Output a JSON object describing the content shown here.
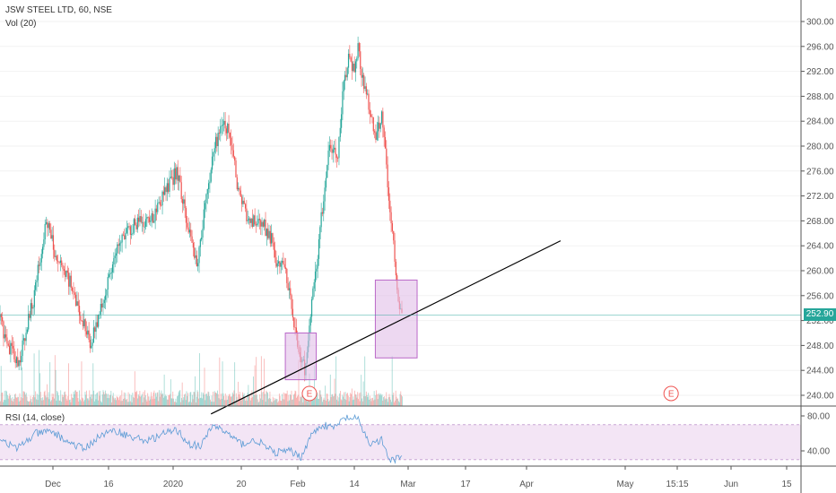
{
  "chart_data": {
    "type": "candlestick",
    "symbol_title": "JSW STEEL LTD, 60, NSE",
    "volume_title": "Vol (20)",
    "rsi_title": "RSI (14, close)",
    "last_price": "252.90",
    "colors": {
      "up": "#26a69a",
      "down": "#ef5350",
      "trendline": "#000000",
      "box_fill": "#e1bee7",
      "box_stroke": "#ba68c8",
      "rsi_band": "#f3e5f5",
      "rsi_line": "#5b9bd5",
      "price_line": "#26a69a",
      "earnings": "#ef5350"
    },
    "price_axis": {
      "ylim": [
        237,
        303
      ],
      "ticks": [
        "240.00",
        "244.00",
        "248.00",
        "252.00",
        "256.00",
        "260.00",
        "264.00",
        "268.00",
        "272.00",
        "276.00",
        "280.00",
        "284.00",
        "288.00",
        "292.00",
        "296.00",
        "300.00"
      ]
    },
    "rsi_axis": {
      "ylim": [
        20,
        90
      ],
      "ticks": [
        "40.00",
        "80.00"
      ],
      "band": [
        30,
        70
      ]
    },
    "x_axis": {
      "labels": [
        "Dec",
        "16",
        "2020",
        "20",
        "Feb",
        "14",
        "Mar",
        "17",
        "Apr",
        "May",
        "15:15",
        "Jun",
        "15"
      ]
    },
    "price_anchors": [
      {
        "t": 0.0,
        "p": 252
      },
      {
        "t": 0.02,
        "p": 248
      },
      {
        "t": 0.045,
        "p": 245
      },
      {
        "t": 0.085,
        "p": 256
      },
      {
        "t": 0.115,
        "p": 268
      },
      {
        "t": 0.145,
        "p": 261
      },
      {
        "t": 0.175,
        "p": 258
      },
      {
        "t": 0.195,
        "p": 254
      },
      {
        "t": 0.225,
        "p": 248
      },
      {
        "t": 0.255,
        "p": 255
      },
      {
        "t": 0.285,
        "p": 262
      },
      {
        "t": 0.31,
        "p": 266
      },
      {
        "t": 0.345,
        "p": 268
      },
      {
        "t": 0.375,
        "p": 268
      },
      {
        "t": 0.405,
        "p": 272
      },
      {
        "t": 0.44,
        "p": 276
      },
      {
        "t": 0.465,
        "p": 268
      },
      {
        "t": 0.49,
        "p": 261
      },
      {
        "t": 0.51,
        "p": 270
      },
      {
        "t": 0.53,
        "p": 279
      },
      {
        "t": 0.55,
        "p": 283
      },
      {
        "t": 0.57,
        "p": 283
      },
      {
        "t": 0.595,
        "p": 272
      },
      {
        "t": 0.62,
        "p": 268
      },
      {
        "t": 0.65,
        "p": 268
      },
      {
        "t": 0.675,
        "p": 265
      },
      {
        "t": 0.69,
        "p": 260
      },
      {
        "t": 0.705,
        "p": 262
      },
      {
        "t": 0.72,
        "p": 256
      },
      {
        "t": 0.74,
        "p": 248
      },
      {
        "t": 0.76,
        "p": 244
      },
      {
        "t": 0.775,
        "p": 254
      },
      {
        "t": 0.79,
        "p": 262
      },
      {
        "t": 0.805,
        "p": 272
      },
      {
        "t": 0.82,
        "p": 280
      },
      {
        "t": 0.84,
        "p": 278
      },
      {
        "t": 0.855,
        "p": 290
      },
      {
        "t": 0.87,
        "p": 295
      },
      {
        "t": 0.88,
        "p": 292
      },
      {
        "t": 0.89,
        "p": 296
      },
      {
        "t": 0.905,
        "p": 290
      },
      {
        "t": 0.92,
        "p": 286
      },
      {
        "t": 0.935,
        "p": 281
      },
      {
        "t": 0.95,
        "p": 285
      },
      {
        "t": 0.96,
        "p": 278
      },
      {
        "t": 0.968,
        "p": 270
      },
      {
        "t": 0.978,
        "p": 265
      },
      {
        "t": 0.986,
        "p": 258
      },
      {
        "t": 0.994,
        "p": 255
      },
      {
        "t": 1.0,
        "p": 252.9
      }
    ],
    "rsi_anchors": [
      {
        "t": 0.0,
        "v": 55
      },
      {
        "t": 0.04,
        "v": 42
      },
      {
        "t": 0.09,
        "v": 60
      },
      {
        "t": 0.13,
        "v": 62
      },
      {
        "t": 0.17,
        "v": 50
      },
      {
        "t": 0.21,
        "v": 42
      },
      {
        "t": 0.25,
        "v": 58
      },
      {
        "t": 0.29,
        "v": 63
      },
      {
        "t": 0.33,
        "v": 55
      },
      {
        "t": 0.37,
        "v": 52
      },
      {
        "t": 0.41,
        "v": 60
      },
      {
        "t": 0.44,
        "v": 64
      },
      {
        "t": 0.47,
        "v": 48
      },
      {
        "t": 0.5,
        "v": 45
      },
      {
        "t": 0.53,
        "v": 70
      },
      {
        "t": 0.56,
        "v": 62
      },
      {
        "t": 0.6,
        "v": 48
      },
      {
        "t": 0.64,
        "v": 52
      },
      {
        "t": 0.68,
        "v": 38
      },
      {
        "t": 0.72,
        "v": 40
      },
      {
        "t": 0.75,
        "v": 33
      },
      {
        "t": 0.77,
        "v": 55
      },
      {
        "t": 0.8,
        "v": 70
      },
      {
        "t": 0.83,
        "v": 66
      },
      {
        "t": 0.86,
        "v": 78
      },
      {
        "t": 0.89,
        "v": 76
      },
      {
        "t": 0.92,
        "v": 48
      },
      {
        "t": 0.95,
        "v": 52
      },
      {
        "t": 0.97,
        "v": 28
      },
      {
        "t": 1.0,
        "v": 33
      }
    ],
    "trendline": {
      "from": {
        "t": 0.525,
        "p": 237
      },
      "to": {
        "t": 1.395,
        "p": 264.8
      }
    },
    "boxes": [
      {
        "t0": 0.71,
        "t1": 0.787,
        "p0": 242.5,
        "p1": 250.0
      },
      {
        "t0": 0.934,
        "t1": 1.038,
        "p0": 246.0,
        "p1": 258.5
      }
    ],
    "earnings": [
      {
        "t": 0.77,
        "label": "E"
      },
      {
        "t": 1.67,
        "label": "E"
      }
    ]
  }
}
